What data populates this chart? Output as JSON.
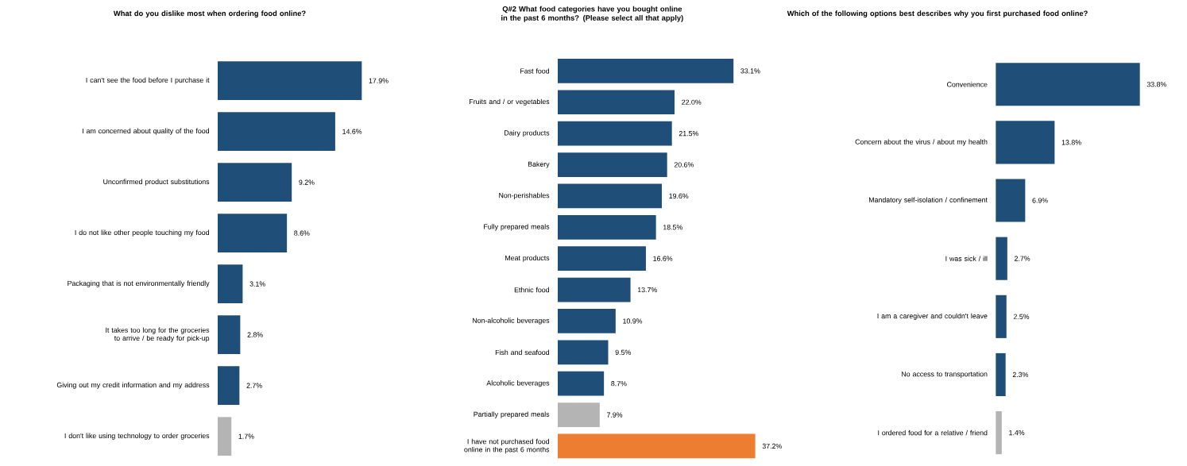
{
  "chart_data": [
    {
      "type": "bar",
      "orientation": "horizontal",
      "title": "What do you dislike most when ordering food online?",
      "tick_labels": "y",
      "categories": [
        "I can't see the food before I purchase it",
        "I am concerned about quality of the food",
        "Unconfirmed product substitutions",
        "I do not like other people touching my food",
        "Packaging that is not environmentally friendly",
        "It takes too long for the groceries to arrive / be ready for pick-up",
        "Giving out my credit information and my address",
        "I don't like using technology to order groceries"
      ],
      "values": [
        17.9,
        14.6,
        9.2,
        8.6,
        3.1,
        2.8,
        2.7,
        1.7
      ],
      "value_labels": [
        "17.9%",
        "14.6%",
        "9.2%",
        "8.6%",
        "3.1%",
        "2.8%",
        "2.7%",
        "1.7%"
      ],
      "colors": [
        "#1f4e79",
        "#1f4e79",
        "#1f4e79",
        "#1f4e79",
        "#1f4e79",
        "#1f4e79",
        "#1f4e79",
        "#b4b4b4"
      ]
    },
    {
      "type": "bar",
      "orientation": "horizontal",
      "title": "Q#2 What food categories have you bought online in the past 6 months? (Please select all that apply)",
      "tick_labels": "y",
      "categories": [
        "Fast food",
        "Fruits and / or vegetables",
        "Dairy products",
        "Bakery",
        "Non-perishables",
        "Fully prepared meals",
        "Meat products",
        "Ethnic food",
        "Non-alcoholic beverages",
        "Fish and seafood",
        "Alcoholic beverages",
        "Partially prepared meals",
        "I have not purchased food online in the past 6 months"
      ],
      "values": [
        33.1,
        22.0,
        21.5,
        20.6,
        19.6,
        18.5,
        16.6,
        13.7,
        10.9,
        9.5,
        8.7,
        7.9,
        37.2
      ],
      "value_labels": [
        "33.1%",
        "22.0%",
        "21.5%",
        "20.6%",
        "19.6%",
        "18.5%",
        "16.6%",
        "13.7%",
        "10.9%",
        "9.5%",
        "8.7%",
        "7.9%",
        "37.2%"
      ],
      "colors": [
        "#1f4e79",
        "#1f4e79",
        "#1f4e79",
        "#1f4e79",
        "#1f4e79",
        "#1f4e79",
        "#1f4e79",
        "#1f4e79",
        "#1f4e79",
        "#1f4e79",
        "#1f4e79",
        "#b4b4b4",
        "#ed7d31"
      ]
    },
    {
      "type": "bar",
      "orientation": "horizontal",
      "title": "Which of the following options best describes why you first purchased food online?",
      "tick_labels": "y",
      "categories": [
        "Convenience",
        "Concern about the virus / about my health",
        "Mandatory self-isolation / confinement",
        "I was sick / ill",
        "I am a caregiver and couldn't leave",
        "No access to transportation",
        "I ordered food for a relative / friend"
      ],
      "values": [
        33.8,
        13.8,
        6.9,
        2.7,
        2.5,
        2.3,
        1.4
      ],
      "value_labels": [
        "33.8%",
        "13.8%",
        "6.9%",
        "2.7%",
        "2.5%",
        "2.3%",
        "1.4%"
      ],
      "colors": [
        "#1f4e79",
        "#1f4e79",
        "#1f4e79",
        "#1f4e79",
        "#1f4e79",
        "#1f4e79",
        "#b4b4b4"
      ]
    }
  ]
}
